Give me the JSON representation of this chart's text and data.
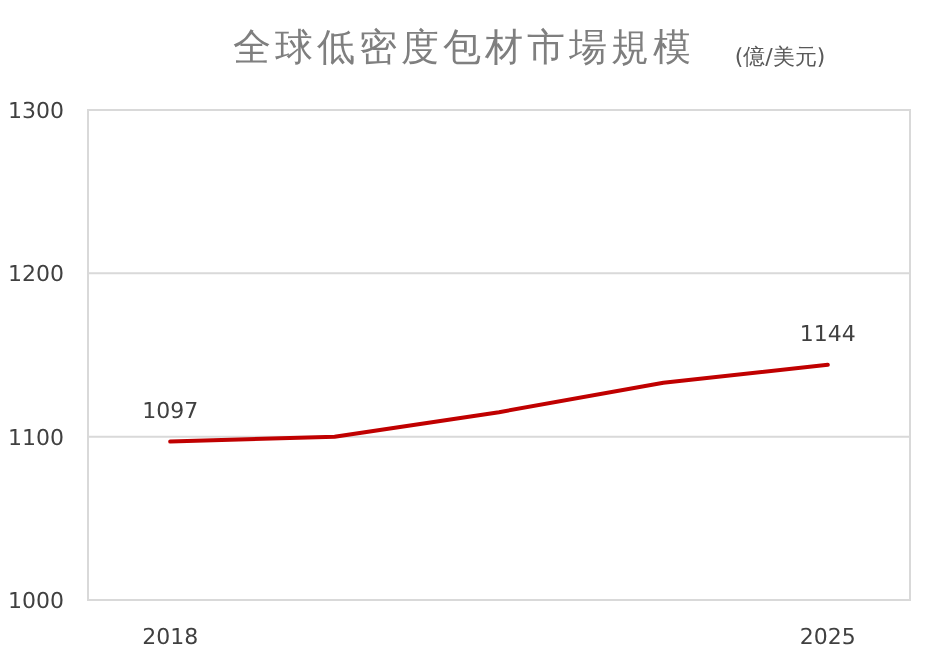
{
  "chart_data": {
    "type": "line",
    "title": "全球低密度包材市場規模",
    "subtitle": "(億/美元)",
    "categories": [
      "2018",
      null,
      null,
      null,
      "2025"
    ],
    "series": [
      {
        "color": "#c00000",
        "values": [
          1097,
          1100,
          1115,
          1133,
          1144
        ],
        "value_labels": [
          "1097",
          null,
          null,
          null,
          "1144"
        ]
      }
    ],
    "ylim": [
      1000,
      1300
    ],
    "yticks": [
      1000,
      1100,
      1200,
      1300
    ],
    "grid": "y"
  }
}
